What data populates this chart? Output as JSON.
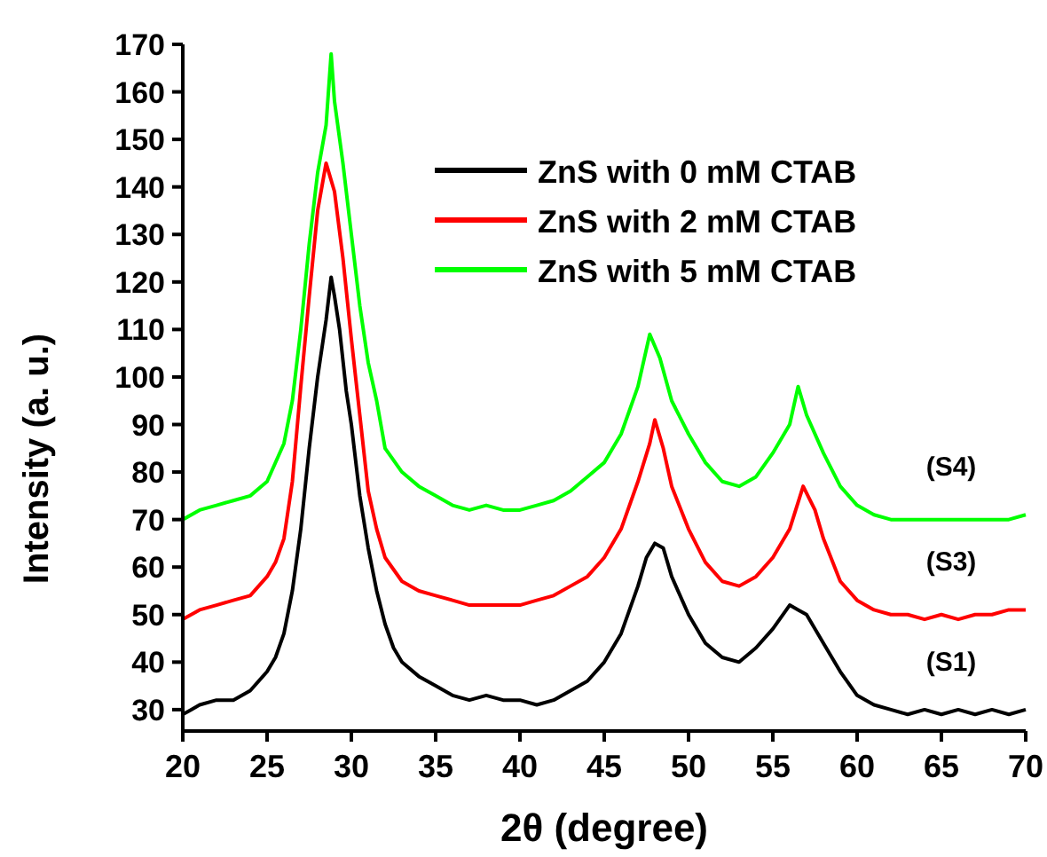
{
  "chart_data": {
    "type": "line",
    "xlabel": "2θ (degree)",
    "ylabel": "Intensity (a. u.)",
    "xlim": [
      20,
      70
    ],
    "xticks": [
      20,
      25,
      30,
      35,
      40,
      45,
      50,
      55,
      60,
      65,
      70
    ],
    "ylim": [
      25.5,
      170
    ],
    "yticks": [
      30,
      40,
      50,
      60,
      70,
      80,
      90,
      100,
      110,
      120,
      130,
      140,
      150,
      160,
      170
    ],
    "legend": "top right",
    "marker": "none",
    "line_style": "solid",
    "annotations": [
      "(S4)",
      "(S3)",
      "(S1)"
    ],
    "series": [
      {
        "name": "ZnS with 0 mM CTAB",
        "color": "#000000",
        "x": [
          20,
          20.5,
          21,
          22,
          23,
          24,
          25,
          25.5,
          26,
          26.5,
          27,
          27.5,
          28,
          28.5,
          28.8,
          29,
          29.3,
          29.7,
          30,
          30.5,
          31,
          31.5,
          32,
          32.5,
          33,
          34,
          35,
          36,
          37,
          38,
          39,
          40,
          41,
          42,
          43,
          44,
          45,
          46,
          47,
          47.5,
          48,
          48.5,
          49,
          50,
          51,
          52,
          53,
          54,
          55,
          56,
          56.5,
          57,
          58,
          59,
          60,
          61,
          62,
          63,
          64,
          65,
          66,
          67,
          68,
          69,
          70
        ],
        "values": [
          29,
          30,
          31,
          32,
          32,
          34,
          38,
          41,
          46,
          55,
          68,
          85,
          100,
          112,
          121,
          117,
          110,
          97,
          90,
          75,
          64,
          55,
          48,
          43,
          40,
          37,
          35,
          33,
          32,
          33,
          32,
          32,
          31,
          32,
          34,
          36,
          40,
          46,
          56,
          62,
          65,
          64,
          58,
          50,
          44,
          41,
          40,
          43,
          47,
          52,
          51,
          50,
          44,
          38,
          33,
          31,
          30,
          29,
          30,
          29,
          30,
          29,
          30,
          29,
          30
        ]
      },
      {
        "name": "ZnS with 2 mM CTAB",
        "color": "#ff0000",
        "x": [
          20,
          21,
          22,
          23,
          24,
          25,
          25.5,
          26,
          26.5,
          27,
          27.5,
          28,
          28.5,
          29,
          29.5,
          30,
          30.5,
          31,
          31.5,
          32,
          33,
          34,
          35,
          36,
          37,
          38,
          39,
          40,
          41,
          42,
          43,
          44,
          45,
          46,
          47,
          47.7,
          48,
          48.5,
          49,
          50,
          51,
          52,
          53,
          54,
          55,
          56,
          56.8,
          57.5,
          58,
          59,
          60,
          61,
          62,
          63,
          64,
          65,
          66,
          67,
          68,
          69,
          70
        ],
        "values": [
          49,
          51,
          52,
          53,
          54,
          58,
          61,
          66,
          78,
          98,
          117,
          135,
          145,
          139,
          125,
          108,
          92,
          76,
          68,
          62,
          57,
          55,
          54,
          53,
          52,
          52,
          52,
          52,
          53,
          54,
          56,
          58,
          62,
          68,
          78,
          86,
          91,
          85,
          77,
          68,
          61,
          57,
          56,
          58,
          62,
          68,
          77,
          72,
          66,
          57,
          53,
          51,
          50,
          50,
          49,
          50,
          49,
          50,
          50,
          51,
          51
        ]
      },
      {
        "name": "ZnS with 5 mM CTAB",
        "color": "#00ff00",
        "x": [
          20,
          21,
          22,
          23,
          24,
          25,
          26,
          26.5,
          27,
          27.5,
          28,
          28.5,
          28.8,
          29,
          29.5,
          30,
          30.5,
          31,
          31.5,
          32,
          33,
          34,
          35,
          36,
          37,
          38,
          39,
          40,
          41,
          42,
          43,
          44,
          45,
          46,
          47,
          47.7,
          48.3,
          49,
          50,
          51,
          52,
          53,
          54,
          55,
          56,
          56.5,
          57,
          58,
          59,
          60,
          61,
          62,
          63,
          64,
          65,
          66,
          67,
          68,
          69,
          70
        ],
        "values": [
          70,
          72,
          73,
          74,
          75,
          78,
          86,
          95,
          110,
          128,
          143,
          153,
          168,
          158,
          145,
          130,
          115,
          103,
          95,
          85,
          80,
          77,
          75,
          73,
          72,
          73,
          72,
          72,
          73,
          74,
          76,
          79,
          82,
          88,
          98,
          109,
          104,
          95,
          88,
          82,
          78,
          77,
          79,
          84,
          90,
          98,
          92,
          84,
          77,
          73,
          71,
          70,
          70,
          70,
          70,
          70,
          70,
          70,
          70,
          71
        ]
      }
    ]
  }
}
